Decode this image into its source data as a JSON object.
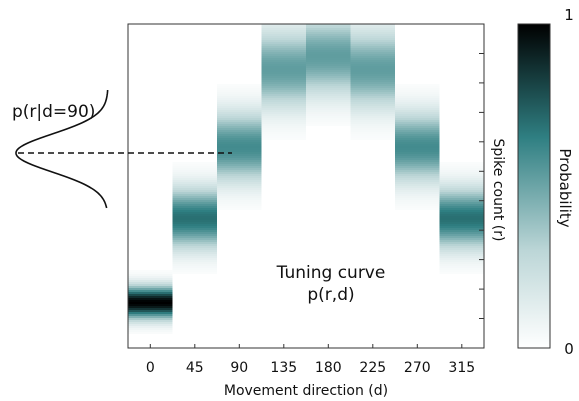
{
  "chart_data": {
    "type": "heatmap",
    "xlabel": "Movement direction  (d)",
    "ylabel": "Spike count  (r)",
    "x_ticks": [
      "0",
      "45",
      "90",
      "135",
      "180",
      "225",
      "270",
      "315"
    ],
    "annotation_title": "Tuning curve",
    "annotation_formula": "p(r,d)",
    "conditional_label": "p(r|d=90)",
    "colorbar": {
      "label": "Probability",
      "min_label": "1",
      "max_label": "0",
      "min": 0,
      "max": 1
    },
    "columns": [
      {
        "direction": 0,
        "mean_fraction": 0.14,
        "spread_fraction": 0.035
      },
      {
        "direction": 45,
        "mean_fraction": 0.4,
        "spread_fraction": 0.065
      },
      {
        "direction": 90,
        "mean_fraction": 0.62,
        "spread_fraction": 0.075
      },
      {
        "direction": 135,
        "mean_fraction": 0.86,
        "spread_fraction": 0.085
      },
      {
        "direction": 180,
        "mean_fraction": 0.9,
        "spread_fraction": 0.085
      },
      {
        "direction": 225,
        "mean_fraction": 0.86,
        "spread_fraction": 0.085
      },
      {
        "direction": 270,
        "mean_fraction": 0.62,
        "spread_fraction": 0.075
      },
      {
        "direction": 315,
        "mean_fraction": 0.4,
        "spread_fraction": 0.065
      }
    ],
    "colors": {
      "peak": "#000000",
      "mid": "#2f7f82",
      "low": "#bcd6d7",
      "zero": "#ffffff"
    }
  }
}
